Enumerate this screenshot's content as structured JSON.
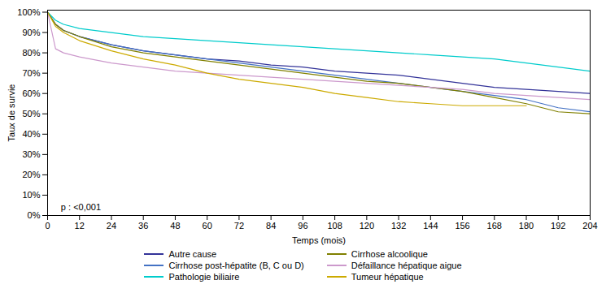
{
  "chart_data": {
    "type": "line",
    "xlabel": "Temps (mois)",
    "ylabel": "Taux de survie",
    "annotations": [
      {
        "text": "p : <0,001",
        "x": 5,
        "y": 0.025
      }
    ],
    "x": [
      0,
      3,
      6,
      12,
      24,
      36,
      48,
      60,
      72,
      84,
      96,
      108,
      120,
      132,
      144,
      156,
      168,
      180,
      192,
      204
    ],
    "series": [
      {
        "name": "Autre cause",
        "color": "#333399",
        "values": [
          1.0,
          0.94,
          0.91,
          0.88,
          0.84,
          0.81,
          0.79,
          0.77,
          0.76,
          0.74,
          0.73,
          0.71,
          0.7,
          0.69,
          0.67,
          0.65,
          0.63,
          0.62,
          0.61,
          0.6
        ]
      },
      {
        "name": "Cirrhose post-hépatite (B, C ou D)",
        "color": "#4472C4",
        "values": [
          1.0,
          0.94,
          0.91,
          0.88,
          0.84,
          0.81,
          0.79,
          0.77,
          0.75,
          0.73,
          0.71,
          0.69,
          0.67,
          0.65,
          0.63,
          0.61,
          0.59,
          0.57,
          0.53,
          0.51
        ]
      },
      {
        "name": "Pathologie biliaire",
        "color": "#00CCCC",
        "values": [
          1.0,
          0.96,
          0.94,
          0.92,
          0.9,
          0.88,
          0.87,
          0.86,
          0.85,
          0.84,
          0.83,
          0.82,
          0.81,
          0.8,
          0.79,
          0.78,
          0.77,
          0.75,
          0.73,
          0.71
        ]
      },
      {
        "name": "Cirrhose alcoolique",
        "color": "#808000",
        "values": [
          1.0,
          0.94,
          0.91,
          0.88,
          0.83,
          0.8,
          0.78,
          0.76,
          0.74,
          0.72,
          0.7,
          0.68,
          0.66,
          0.65,
          0.63,
          0.61,
          0.58,
          0.55,
          0.51,
          0.5
        ]
      },
      {
        "name": "Défaillance hépatique aigue",
        "color": "#CC99CC",
        "values": [
          1.0,
          0.82,
          0.8,
          0.78,
          0.75,
          0.73,
          0.71,
          0.7,
          0.69,
          0.68,
          0.67,
          0.66,
          0.65,
          0.64,
          0.63,
          0.62,
          0.6,
          0.59,
          0.58,
          0.57
        ]
      },
      {
        "name": "Tumeur hépatique",
        "color": "#CCAA00",
        "values": [
          1.0,
          0.93,
          0.9,
          0.86,
          0.81,
          0.77,
          0.74,
          0.7,
          0.67,
          0.65,
          0.63,
          0.6,
          0.58,
          0.56,
          0.55,
          0.54,
          0.54,
          0.54,
          null,
          null
        ]
      }
    ],
    "xlim": [
      0,
      204
    ],
    "ylim": [
      0.0,
      1.01
    ],
    "xticks": [
      0,
      12,
      24,
      36,
      48,
      60,
      72,
      84,
      96,
      108,
      120,
      132,
      144,
      156,
      168,
      180,
      192,
      204
    ],
    "yticks": [
      {
        "value": 0.0,
        "label": "0%"
      },
      {
        "value": 0.1,
        "label": "10%"
      },
      {
        "value": 0.2,
        "label": "20%"
      },
      {
        "value": 0.3,
        "label": "30%"
      },
      {
        "value": 0.4,
        "label": "40%"
      },
      {
        "value": 0.5,
        "label": "50%"
      },
      {
        "value": 0.6,
        "label": "60%"
      },
      {
        "value": 0.7,
        "label": "70%"
      },
      {
        "value": 0.8,
        "label": "80%"
      },
      {
        "value": 0.9,
        "label": "90%"
      },
      {
        "value": 1.0,
        "label": "100%"
      }
    ],
    "grid": false,
    "legend": "bottom"
  }
}
